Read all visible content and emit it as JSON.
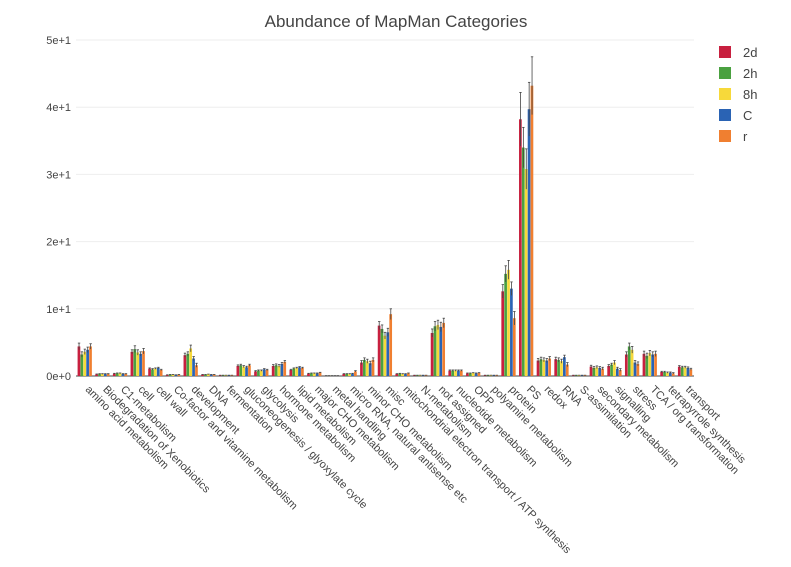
{
  "chart_data": {
    "type": "bar",
    "title": "Abundance of MapMan Categories",
    "xlabel": "",
    "ylabel": "",
    "ylim": [
      0,
      50
    ],
    "yticks": [
      0,
      10,
      20,
      30,
      40,
      50
    ],
    "ytick_labels": [
      "0e+0",
      "1e+1",
      "2e+1",
      "3e+1",
      "4e+1",
      "5e+1"
    ],
    "grid": true,
    "legend_position": "top-right",
    "error_bars": true,
    "categories": [
      "amino acid metabolism",
      "Biodegradation of Xenobiotics",
      "C1-metabolism",
      "cell",
      "cell wall",
      "Co-factor and vitamine metabolism",
      "development",
      "DNA",
      "fermentation",
      "gluconeogenesis / glyoxylate cycle",
      "glycolysis",
      "hormone metabolism",
      "lipid metabolism",
      "major CHO metabolism",
      "metal handling",
      "micro RNA, natural antisense etc",
      "minor CHO metabolism",
      "misc",
      "mitochondrial electron transport / ATP synthesis",
      "N-metabolism",
      "not assigned",
      "nucleotide metabolism",
      "OPP",
      "polyamine metabolism",
      "protein",
      "PS",
      "redox",
      "RNA",
      "S-assimilation",
      "secondary metabolism",
      "signalling",
      "stress",
      "TCA / org transformation",
      "tetrapyrrole synthesis",
      "transport"
    ],
    "series": [
      {
        "name": "2d",
        "color": "#c8203f",
        "values": [
          4.4,
          0.25,
          0.35,
          3.6,
          1.1,
          0.15,
          3.1,
          0.2,
          0.1,
          1.5,
          0.7,
          1.5,
          0.9,
          0.35,
          0.05,
          0.3,
          2.0,
          7.5,
          0.3,
          0.1,
          6.4,
          0.8,
          0.4,
          0.1,
          12.6,
          38.2,
          2.3,
          2.5,
          0.1,
          1.4,
          1.5,
          3.2,
          3.3,
          0.6,
          1.4
        ],
        "errors": [
          0.5,
          0.05,
          0.05,
          0.3,
          0.1,
          0.03,
          0.3,
          0.03,
          0.02,
          0.15,
          0.1,
          0.2,
          0.1,
          0.05,
          0.01,
          0.05,
          0.3,
          0.6,
          0.05,
          0.02,
          0.6,
          0.1,
          0.05,
          0.02,
          1.0,
          4.0,
          0.3,
          0.3,
          0.02,
          0.2,
          0.2,
          0.4,
          0.4,
          0.1,
          0.15
        ]
      },
      {
        "name": "2h",
        "color": "#4aa140",
        "values": [
          3.2,
          0.3,
          0.4,
          4.0,
          1.0,
          0.2,
          3.3,
          0.2,
          0.1,
          1.6,
          0.8,
          1.6,
          1.1,
          0.4,
          0.05,
          0.3,
          2.4,
          7.0,
          0.35,
          0.1,
          7.4,
          0.8,
          0.4,
          0.1,
          15.2,
          34.0,
          2.5,
          2.4,
          0.1,
          1.2,
          1.7,
          4.4,
          3.0,
          0.6,
          1.3
        ],
        "errors": [
          0.4,
          0.05,
          0.05,
          0.5,
          0.1,
          0.03,
          0.3,
          0.03,
          0.02,
          0.15,
          0.1,
          0.2,
          0.1,
          0.05,
          0.01,
          0.05,
          0.3,
          0.6,
          0.05,
          0.02,
          0.7,
          0.1,
          0.05,
          0.02,
          1.2,
          3.0,
          0.3,
          0.3,
          0.02,
          0.2,
          0.2,
          0.5,
          0.4,
          0.1,
          0.15
        ]
      },
      {
        "name": "8h",
        "color": "#f7d93a",
        "values": [
          3.6,
          0.3,
          0.4,
          3.5,
          1.1,
          0.2,
          4.1,
          0.25,
          0.1,
          1.4,
          0.8,
          1.5,
          1.2,
          0.4,
          0.05,
          0.3,
          2.2,
          6.0,
          0.3,
          0.1,
          7.6,
          0.8,
          0.45,
          0.1,
          15.8,
          30.8,
          2.4,
          2.2,
          0.1,
          1.3,
          2.0,
          3.9,
          3.4,
          0.5,
          1.3
        ],
        "errors": [
          0.4,
          0.05,
          0.05,
          0.4,
          0.1,
          0.03,
          0.5,
          0.03,
          0.02,
          0.15,
          0.1,
          0.2,
          0.1,
          0.05,
          0.01,
          0.05,
          0.3,
          0.5,
          0.05,
          0.02,
          0.7,
          0.1,
          0.05,
          0.02,
          1.4,
          3.0,
          0.3,
          0.3,
          0.02,
          0.2,
          0.3,
          0.5,
          0.4,
          0.1,
          0.15
        ]
      },
      {
        "name": "C",
        "color": "#2a63b4",
        "values": [
          3.9,
          0.3,
          0.3,
          3.3,
          1.2,
          0.15,
          2.6,
          0.2,
          0.1,
          1.3,
          1.0,
          1.8,
          1.3,
          0.4,
          0.05,
          0.35,
          1.9,
          6.5,
          0.3,
          0.1,
          7.3,
          0.8,
          0.4,
          0.1,
          13.0,
          39.7,
          2.3,
          2.8,
          0.1,
          1.2,
          1.1,
          2.0,
          3.2,
          0.5,
          1.2
        ],
        "errors": [
          0.4,
          0.05,
          0.05,
          0.3,
          0.1,
          0.03,
          0.3,
          0.03,
          0.02,
          0.15,
          0.1,
          0.2,
          0.1,
          0.05,
          0.01,
          0.05,
          0.3,
          0.6,
          0.05,
          0.02,
          0.7,
          0.1,
          0.05,
          0.02,
          1.0,
          4.0,
          0.3,
          0.3,
          0.02,
          0.2,
          0.2,
          0.3,
          0.4,
          0.1,
          0.15
        ]
      },
      {
        "name": "r",
        "color": "#f07f30",
        "values": [
          4.4,
          0.3,
          0.3,
          3.7,
          0.9,
          0.2,
          1.6,
          0.2,
          0.1,
          1.6,
          0.9,
          2.1,
          1.2,
          0.5,
          0.05,
          0.7,
          2.4,
          9.2,
          0.4,
          0.1,
          7.9,
          0.8,
          0.45,
          0.1,
          8.6,
          43.2,
          2.6,
          1.7,
          0.1,
          1.1,
          0.9,
          1.8,
          3.3,
          0.4,
          1.0
        ],
        "errors": [
          0.4,
          0.05,
          0.05,
          0.4,
          0.1,
          0.03,
          0.3,
          0.03,
          0.02,
          0.15,
          0.1,
          0.2,
          0.1,
          0.05,
          0.01,
          0.1,
          0.3,
          0.8,
          0.05,
          0.02,
          0.7,
          0.1,
          0.05,
          0.02,
          1.0,
          4.3,
          0.3,
          0.3,
          0.02,
          0.2,
          0.2,
          0.3,
          0.4,
          0.1,
          0.15
        ]
      }
    ]
  }
}
